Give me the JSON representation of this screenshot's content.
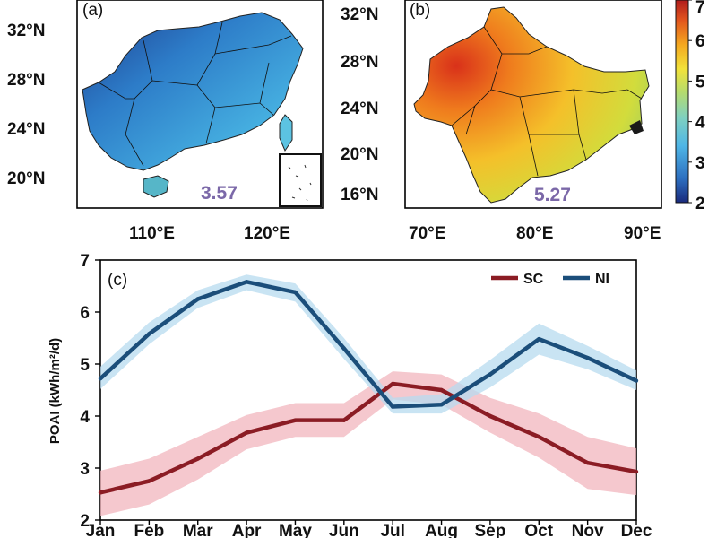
{
  "panels": {
    "a": {
      "label": "(a)",
      "lat_ticks": [
        "32°N",
        "28°N",
        "24°N",
        "20°N"
      ],
      "lon_ticks": [
        "110°E",
        "120°E"
      ],
      "mean_value": "3.57"
    },
    "b": {
      "label": "(b)",
      "lat_ticks": [
        "32°N",
        "28°N",
        "24°N",
        "20°N",
        "16°N"
      ],
      "lon_ticks": [
        "70°E",
        "80°E",
        "90°E"
      ],
      "mean_value": "5.27"
    }
  },
  "colorbar": {
    "ticks": [
      "7",
      "6",
      "5",
      "4",
      "3",
      "2"
    ],
    "min": 2,
    "max": 7,
    "colors": [
      "#1a2a7c",
      "#2d6fc0",
      "#4fb6e6",
      "#7fd0c0",
      "#b8dc6a",
      "#f2e23a",
      "#f4a820",
      "#e2551e",
      "#b01c1c"
    ]
  },
  "chart_data": {
    "type": "line",
    "label": "(c)",
    "ylabel": "POAI (kWh/m²/d)",
    "ylim": [
      2,
      7
    ],
    "yticks": [
      "2",
      "3",
      "4",
      "5",
      "6",
      "7"
    ],
    "categories": [
      "Jan",
      "Feb",
      "Mar",
      "Apr",
      "May",
      "Jun",
      "Jul",
      "Aug",
      "Sep",
      "Oct",
      "Nov",
      "Dec"
    ],
    "series": [
      {
        "name": "SC",
        "color": "#8b1c24",
        "band_color": "#f1b6bd",
        "values": [
          2.53,
          2.75,
          3.18,
          3.68,
          3.92,
          3.92,
          4.62,
          4.5,
          4.0,
          3.6,
          3.1,
          2.93
        ],
        "lower": [
          2.08,
          2.3,
          2.78,
          3.36,
          3.6,
          3.6,
          4.32,
          4.22,
          3.68,
          3.2,
          2.6,
          2.48
        ],
        "upper": [
          2.95,
          3.18,
          3.6,
          4.02,
          4.25,
          4.25,
          4.86,
          4.8,
          4.35,
          4.05,
          3.6,
          3.38
        ]
      },
      {
        "name": "NI",
        "color": "#1b4e7a",
        "band_color": "#b7dbef",
        "values": [
          4.72,
          5.58,
          6.25,
          6.58,
          6.38,
          5.3,
          4.18,
          4.22,
          4.8,
          5.48,
          5.12,
          4.68
        ],
        "lower": [
          4.52,
          5.38,
          6.08,
          6.42,
          6.2,
          5.1,
          4.05,
          4.05,
          4.55,
          5.18,
          4.9,
          4.5
        ],
        "upper": [
          4.95,
          5.8,
          6.42,
          6.72,
          6.55,
          5.5,
          4.35,
          4.42,
          5.08,
          5.78,
          5.35,
          4.88
        ]
      }
    ],
    "legend_position": "top-right"
  }
}
